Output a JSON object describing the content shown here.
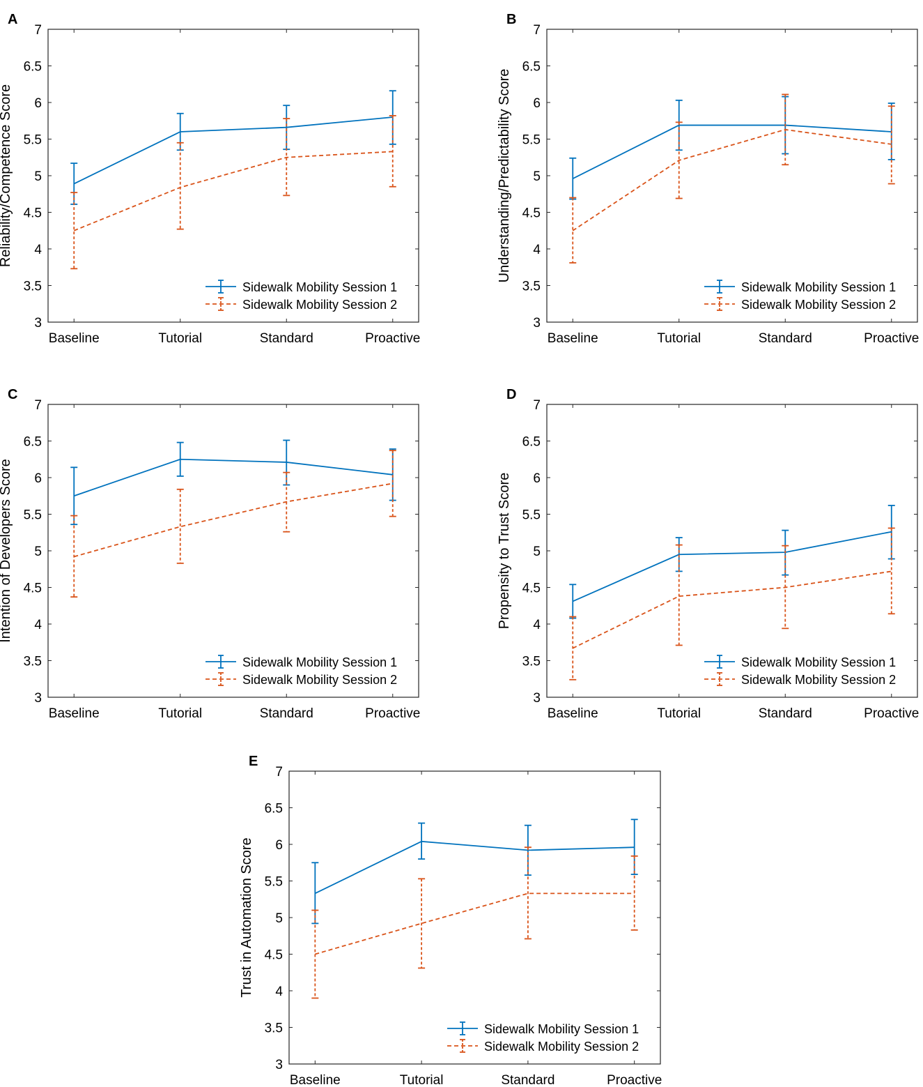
{
  "figure": {
    "colors": {
      "session1": "#0072BD",
      "session2": "#D95319",
      "axis": "#262626"
    }
  },
  "chart_data": [
    {
      "panel": "A",
      "type": "line",
      "ylabel": "Reliability/Competence Score",
      "xlabel": "",
      "title": "",
      "categories": [
        "Baseline",
        "Tutorial",
        "Standard",
        "Proactive"
      ],
      "ylim": [
        3,
        7
      ],
      "yticks": [
        "3",
        "3.5",
        "4",
        "4.5",
        "5",
        "5.5",
        "6",
        "6.5",
        "7"
      ],
      "legend_position": "bottom-right",
      "series": [
        {
          "name": "Sidewalk Mobility Session 1",
          "style": "solid",
          "values": [
            4.89,
            5.6,
            5.66,
            5.8
          ],
          "lower": [
            4.61,
            5.35,
            5.36,
            5.43
          ],
          "upper": [
            5.17,
            5.85,
            5.96,
            6.16
          ]
        },
        {
          "name": "Sidewalk Mobility Session 2",
          "style": "dashed",
          "values": [
            4.25,
            4.84,
            5.25,
            5.33
          ],
          "lower": [
            3.73,
            4.27,
            4.73,
            4.85
          ],
          "upper": [
            4.77,
            5.45,
            5.78,
            5.82
          ]
        }
      ]
    },
    {
      "panel": "B",
      "type": "line",
      "ylabel": "Understanding/Predictability Score",
      "xlabel": "",
      "title": "",
      "categories": [
        "Baseline",
        "Tutorial",
        "Standard",
        "Proactive"
      ],
      "ylim": [
        3,
        7
      ],
      "yticks": [
        "3",
        "3.5",
        "4",
        "4.5",
        "5",
        "5.5",
        "6",
        "6.5",
        "7"
      ],
      "legend_position": "bottom-right",
      "series": [
        {
          "name": "Sidewalk Mobility Session 1",
          "style": "solid",
          "values": [
            4.96,
            5.69,
            5.69,
            5.6
          ],
          "lower": [
            4.68,
            5.35,
            5.3,
            5.22
          ],
          "upper": [
            5.24,
            6.03,
            6.08,
            5.99
          ]
        },
        {
          "name": "Sidewalk Mobility Session 2",
          "style": "dashed",
          "values": [
            4.25,
            5.21,
            5.63,
            5.43
          ],
          "lower": [
            3.81,
            4.69,
            5.15,
            4.89
          ],
          "upper": [
            4.7,
            5.73,
            6.11,
            5.95
          ]
        }
      ]
    },
    {
      "panel": "C",
      "type": "line",
      "ylabel": "Intention of Developers Score",
      "xlabel": "",
      "title": "",
      "categories": [
        "Baseline",
        "Tutorial",
        "Standard",
        "Proactive"
      ],
      "ylim": [
        3,
        7
      ],
      "yticks": [
        "3",
        "3.5",
        "4",
        "4.5",
        "5",
        "5.5",
        "6",
        "6.5",
        "7"
      ],
      "legend_position": "bottom-right",
      "series": [
        {
          "name": "Sidewalk Mobility Session 1",
          "style": "solid",
          "values": [
            5.75,
            6.25,
            6.21,
            6.04
          ],
          "lower": [
            5.36,
            6.02,
            5.9,
            5.69
          ],
          "upper": [
            6.14,
            6.48,
            6.51,
            6.39
          ]
        },
        {
          "name": "Sidewalk Mobility Session 2",
          "style": "dashed",
          "values": [
            4.92,
            5.33,
            5.67,
            5.92
          ],
          "lower": [
            4.37,
            4.83,
            5.26,
            5.47
          ],
          "upper": [
            5.48,
            5.84,
            6.07,
            6.37
          ]
        }
      ]
    },
    {
      "panel": "D",
      "type": "line",
      "ylabel": "Propensity to Trust Score",
      "xlabel": "",
      "title": "",
      "categories": [
        "Baseline",
        "Tutorial",
        "Standard",
        "Proactive"
      ],
      "ylim": [
        3,
        7
      ],
      "yticks": [
        "3",
        "3.5",
        "4",
        "4.5",
        "5",
        "5.5",
        "6",
        "6.5",
        "7"
      ],
      "legend_position": "bottom-right",
      "series": [
        {
          "name": "Sidewalk Mobility Session 1",
          "style": "solid",
          "values": [
            4.31,
            4.95,
            4.98,
            5.26
          ],
          "lower": [
            4.08,
            4.72,
            4.67,
            4.89
          ],
          "upper": [
            4.54,
            5.18,
            5.28,
            5.62
          ]
        },
        {
          "name": "Sidewalk Mobility Session 2",
          "style": "dashed",
          "values": [
            3.67,
            4.38,
            4.5,
            4.72
          ],
          "lower": [
            3.24,
            3.71,
            3.94,
            4.14
          ],
          "upper": [
            4.1,
            5.08,
            5.07,
            5.31
          ]
        }
      ]
    },
    {
      "panel": "E",
      "type": "line",
      "ylabel": "Trust in Automation Score",
      "xlabel": "",
      "title": "",
      "categories": [
        "Baseline",
        "Tutorial",
        "Standard",
        "Proactive"
      ],
      "ylim": [
        3,
        7
      ],
      "yticks": [
        "3",
        "3.5",
        "4",
        "4.5",
        "5",
        "5.5",
        "6",
        "6.5",
        "7"
      ],
      "legend_position": "bottom-right",
      "series": [
        {
          "name": "Sidewalk Mobility Session 1",
          "style": "solid",
          "values": [
            5.33,
            6.04,
            5.92,
            5.96
          ],
          "lower": [
            4.92,
            5.8,
            5.58,
            5.59
          ],
          "upper": [
            5.75,
            6.29,
            6.26,
            6.34
          ]
        },
        {
          "name": "Sidewalk Mobility Session 2",
          "style": "dashed",
          "values": [
            4.5,
            4.92,
            5.33,
            5.33
          ],
          "lower": [
            3.9,
            4.31,
            4.71,
            4.83
          ],
          "upper": [
            5.1,
            5.53,
            5.96,
            5.84
          ]
        }
      ]
    }
  ]
}
